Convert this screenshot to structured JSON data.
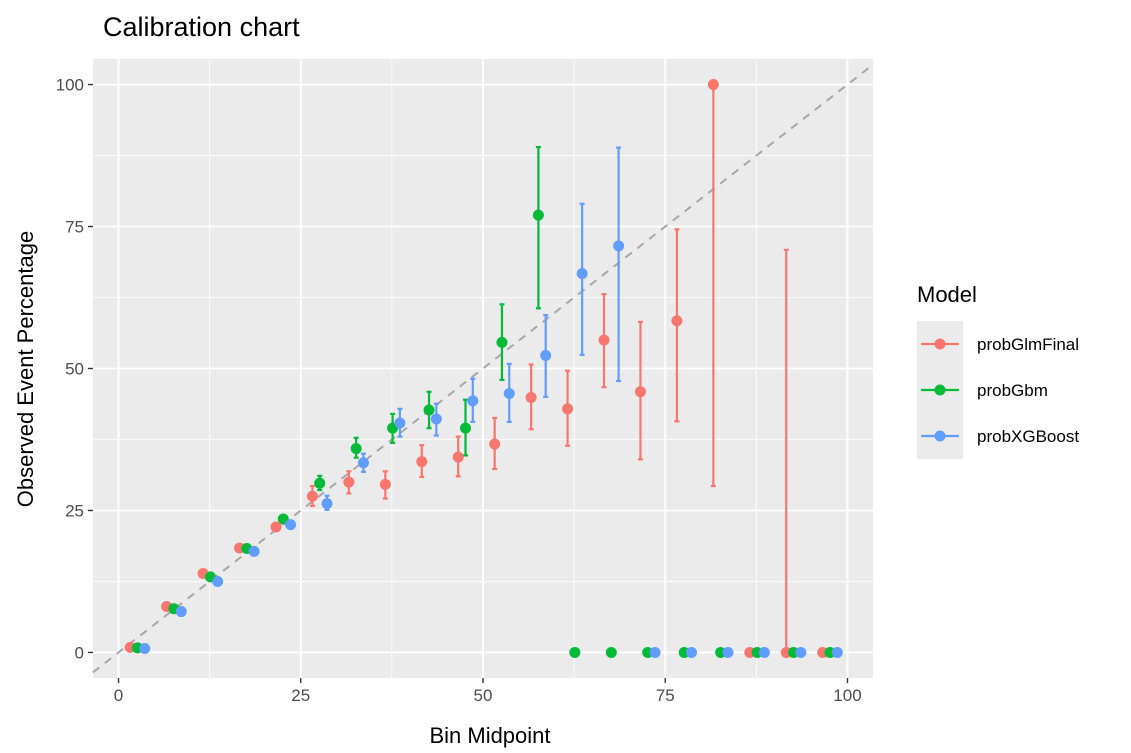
{
  "chart_data": {
    "type": "scatter",
    "title": "Calibration chart",
    "xlabel": "Bin Midpoint",
    "ylabel": "Observed Event Percentage",
    "xlim": [
      -3.5,
      103.5
    ],
    "ylim": [
      -4.5,
      104.5
    ],
    "xticks": [
      0,
      25,
      50,
      75,
      100
    ],
    "yticks": [
      0,
      25,
      50,
      75,
      100
    ],
    "grid": true,
    "reference_line": "y = x (dashed)",
    "legend": {
      "title": "Model",
      "position": "right"
    },
    "colors": {
      "probGlmFinal": "#F8766D",
      "probGbm": "#00BA38",
      "probXGBoost": "#619CFF"
    },
    "series": [
      {
        "name": "probGlmFinal",
        "x": [
          1.6,
          6.6,
          11.6,
          16.6,
          21.6,
          26.6,
          31.6,
          36.6,
          41.6,
          46.6,
          51.6,
          56.6,
          61.6,
          66.6,
          71.6,
          76.6,
          81.6,
          86.6,
          91.6,
          96.6
        ],
        "y": [
          0.9,
          8.1,
          13.9,
          18.4,
          22.1,
          27.5,
          30.0,
          29.6,
          33.6,
          34.4,
          36.7,
          44.9,
          42.9,
          55.0,
          45.9,
          58.4,
          100,
          0,
          0,
          0
        ],
        "ymin": [
          null,
          null,
          null,
          null,
          null,
          25.8,
          28.0,
          27.1,
          30.9,
          31.0,
          32.3,
          39.3,
          36.4,
          46.7,
          34.0,
          40.7,
          29.3,
          null,
          0,
          null
        ],
        "ymax": [
          null,
          null,
          null,
          null,
          null,
          29.3,
          31.9,
          31.9,
          36.5,
          38.0,
          41.3,
          50.7,
          49.6,
          63.1,
          58.2,
          74.5,
          100,
          null,
          70.9,
          null
        ]
      },
      {
        "name": "probGbm",
        "x": [
          2.6,
          7.6,
          12.6,
          17.6,
          22.6,
          27.6,
          32.6,
          37.6,
          42.6,
          47.6,
          52.6,
          57.6,
          62.6,
          67.6,
          72.6,
          77.6,
          82.6,
          87.6,
          92.6,
          97.6
        ],
        "y": [
          0.8,
          7.7,
          13.3,
          18.3,
          23.5,
          29.8,
          35.9,
          39.5,
          42.7,
          39.5,
          54.6,
          77.0,
          0,
          0,
          0,
          0,
          0,
          0,
          0,
          0
        ],
        "ymin": [
          null,
          null,
          null,
          null,
          null,
          28.6,
          34.3,
          36.9,
          39.5,
          34.7,
          48.0,
          60.6,
          null,
          null,
          null,
          null,
          null,
          null,
          null,
          null
        ],
        "ymax": [
          null,
          null,
          null,
          null,
          null,
          31.1,
          37.8,
          42.0,
          45.9,
          44.5,
          61.3,
          89.0,
          null,
          null,
          null,
          null,
          null,
          null,
          null,
          null
        ]
      },
      {
        "name": "probXGBoost",
        "x": [
          3.6,
          8.6,
          13.6,
          18.6,
          23.6,
          28.6,
          33.6,
          38.6,
          43.6,
          48.6,
          53.6,
          58.6,
          63.6,
          68.6,
          73.6,
          78.6,
          83.6,
          88.6,
          93.6,
          98.6
        ],
        "y": [
          0.7,
          7.2,
          12.5,
          17.8,
          22.5,
          26.2,
          33.4,
          40.4,
          41.1,
          44.3,
          45.6,
          52.3,
          66.7,
          71.6,
          0,
          0,
          0,
          0,
          0,
          0
        ],
        "ymin": [
          null,
          null,
          null,
          null,
          null,
          25.1,
          31.8,
          38.0,
          38.2,
          40.6,
          40.6,
          45.0,
          52.4,
          47.8,
          null,
          null,
          null,
          null,
          null,
          null
        ],
        "ymax": [
          null,
          null,
          null,
          null,
          null,
          27.6,
          35.0,
          42.9,
          43.8,
          48.2,
          50.8,
          59.4,
          79.0,
          88.9,
          null,
          null,
          null,
          null,
          null,
          null
        ]
      }
    ]
  }
}
